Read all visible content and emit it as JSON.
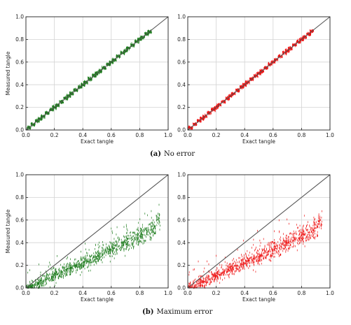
{
  "figure": {
    "captions": [
      {
        "tag": "(a)",
        "text": "No error"
      },
      {
        "tag": "(b)",
        "text": "Maximum error"
      }
    ]
  },
  "chart_data": [
    {
      "type": "scatter",
      "panel": "a-left",
      "xlabel": "Exact tangle",
      "ylabel": "Measured tangle",
      "xlim": [
        0.0,
        1.0
      ],
      "ylim": [
        0.0,
        1.0
      ],
      "xticks": [
        "0.0",
        "0.2",
        "0.4",
        "0.6",
        "0.8",
        "1.0"
      ],
      "yticks": [
        "0.0",
        "0.2",
        "0.4",
        "0.6",
        "0.8",
        "1.0"
      ],
      "grid": true,
      "color": "#1a7a1a",
      "reference_line": {
        "x": [
          0,
          1
        ],
        "y": [
          0,
          1
        ],
        "color": "#555555"
      },
      "series": [
        {
          "x": [
            0.02,
            0.05,
            0.08,
            0.1,
            0.12,
            0.15,
            0.18,
            0.2,
            0.22,
            0.25,
            0.28,
            0.3,
            0.32,
            0.35,
            0.38,
            0.4,
            0.42,
            0.45,
            0.48,
            0.5,
            0.52,
            0.55,
            0.58,
            0.6,
            0.62,
            0.65,
            0.68,
            0.7,
            0.72,
            0.75,
            0.78,
            0.8,
            0.82,
            0.85,
            0.87
          ],
          "y": [
            0.02,
            0.05,
            0.08,
            0.1,
            0.12,
            0.15,
            0.18,
            0.2,
            0.22,
            0.25,
            0.28,
            0.3,
            0.32,
            0.35,
            0.38,
            0.4,
            0.42,
            0.45,
            0.48,
            0.5,
            0.52,
            0.55,
            0.58,
            0.6,
            0.62,
            0.65,
            0.68,
            0.7,
            0.72,
            0.75,
            0.78,
            0.8,
            0.82,
            0.85,
            0.87
          ]
        }
      ]
    },
    {
      "type": "scatter",
      "panel": "a-right",
      "xlabel": "Exact tangle",
      "ylabel": "",
      "xlim": [
        0.0,
        1.0
      ],
      "ylim": [
        0.0,
        1.0
      ],
      "xticks": [
        "0.0",
        "0.2",
        "0.4",
        "0.6",
        "0.8",
        "1.0"
      ],
      "yticks": [
        "0.0",
        "0.2",
        "0.4",
        "0.6",
        "0.8",
        "1.0"
      ],
      "grid": true,
      "color": "#ee1111",
      "reference_line": {
        "x": [
          0,
          1
        ],
        "y": [
          0,
          1
        ],
        "color": "#555555"
      },
      "series": [
        {
          "x": [
            0.02,
            0.05,
            0.08,
            0.1,
            0.12,
            0.15,
            0.18,
            0.2,
            0.22,
            0.25,
            0.28,
            0.3,
            0.32,
            0.35,
            0.38,
            0.4,
            0.42,
            0.45,
            0.48,
            0.5,
            0.52,
            0.55,
            0.58,
            0.6,
            0.62,
            0.65,
            0.68,
            0.7,
            0.72,
            0.75,
            0.78,
            0.8,
            0.82,
            0.85,
            0.87
          ],
          "y": [
            0.02,
            0.05,
            0.08,
            0.1,
            0.12,
            0.15,
            0.18,
            0.2,
            0.22,
            0.25,
            0.28,
            0.3,
            0.32,
            0.35,
            0.38,
            0.4,
            0.42,
            0.45,
            0.48,
            0.5,
            0.52,
            0.55,
            0.58,
            0.6,
            0.62,
            0.65,
            0.68,
            0.7,
            0.72,
            0.75,
            0.78,
            0.8,
            0.82,
            0.85,
            0.87
          ]
        }
      ]
    },
    {
      "type": "scatter",
      "panel": "b-left",
      "xlabel": "Exact tangle",
      "ylabel": "Measured tangle",
      "xlim": [
        0.0,
        1.0
      ],
      "ylim": [
        0.0,
        1.0
      ],
      "xticks": [
        "0.0",
        "0.2",
        "0.4",
        "0.6",
        "0.8",
        "1.0"
      ],
      "yticks": [
        "0.0",
        "0.2",
        "0.4",
        "0.6",
        "0.8",
        "1.0"
      ],
      "grid": true,
      "color": "#1a7a1a",
      "reference_line": {
        "x": [
          0,
          1
        ],
        "y": [
          0,
          1
        ],
        "color": "#555555"
      },
      "series": [
        {
          "x": [
            0.02,
            0.05,
            0.08,
            0.1,
            0.12,
            0.15,
            0.18,
            0.2,
            0.22,
            0.25,
            0.28,
            0.3,
            0.32,
            0.35,
            0.38,
            0.4,
            0.42,
            0.45,
            0.48,
            0.5,
            0.52,
            0.55,
            0.58,
            0.6,
            0.62,
            0.65,
            0.68,
            0.7,
            0.72,
            0.75,
            0.78,
            0.8,
            0.82,
            0.85,
            0.88,
            0.9,
            0.93
          ],
          "y": [
            0.01,
            0.02,
            0.04,
            0.05,
            0.06,
            0.08,
            0.1,
            0.11,
            0.12,
            0.14,
            0.16,
            0.17,
            0.18,
            0.2,
            0.21,
            0.22,
            0.24,
            0.25,
            0.27,
            0.28,
            0.29,
            0.31,
            0.32,
            0.34,
            0.35,
            0.37,
            0.38,
            0.4,
            0.41,
            0.43,
            0.44,
            0.46,
            0.47,
            0.49,
            0.51,
            0.53,
            0.6
          ]
        }
      ]
    },
    {
      "type": "scatter",
      "panel": "b-right",
      "xlabel": "Exact tangle",
      "ylabel": "",
      "xlim": [
        0.0,
        1.0
      ],
      "ylim": [
        0.0,
        1.0
      ],
      "xticks": [
        "0.0",
        "0.2",
        "0.4",
        "0.6",
        "0.8",
        "1.0"
      ],
      "yticks": [
        "0.0",
        "0.2",
        "0.4",
        "0.6",
        "0.8",
        "1.0"
      ],
      "grid": true,
      "color": "#ee1111",
      "reference_line": {
        "x": [
          0,
          1
        ],
        "y": [
          0,
          1
        ],
        "color": "#555555"
      },
      "series": [
        {
          "x": [
            0.02,
            0.05,
            0.08,
            0.1,
            0.12,
            0.15,
            0.18,
            0.2,
            0.22,
            0.25,
            0.28,
            0.3,
            0.32,
            0.35,
            0.38,
            0.4,
            0.42,
            0.45,
            0.48,
            0.5,
            0.52,
            0.55,
            0.58,
            0.6,
            0.62,
            0.65,
            0.68,
            0.7,
            0.72,
            0.75,
            0.78,
            0.8,
            0.82,
            0.85,
            0.88,
            0.9,
            0.93
          ],
          "y": [
            0.01,
            0.02,
            0.04,
            0.05,
            0.06,
            0.08,
            0.1,
            0.11,
            0.12,
            0.14,
            0.16,
            0.17,
            0.18,
            0.2,
            0.21,
            0.22,
            0.24,
            0.25,
            0.27,
            0.28,
            0.29,
            0.31,
            0.32,
            0.34,
            0.35,
            0.37,
            0.38,
            0.4,
            0.41,
            0.43,
            0.44,
            0.46,
            0.47,
            0.49,
            0.51,
            0.53,
            0.6
          ]
        }
      ]
    }
  ]
}
